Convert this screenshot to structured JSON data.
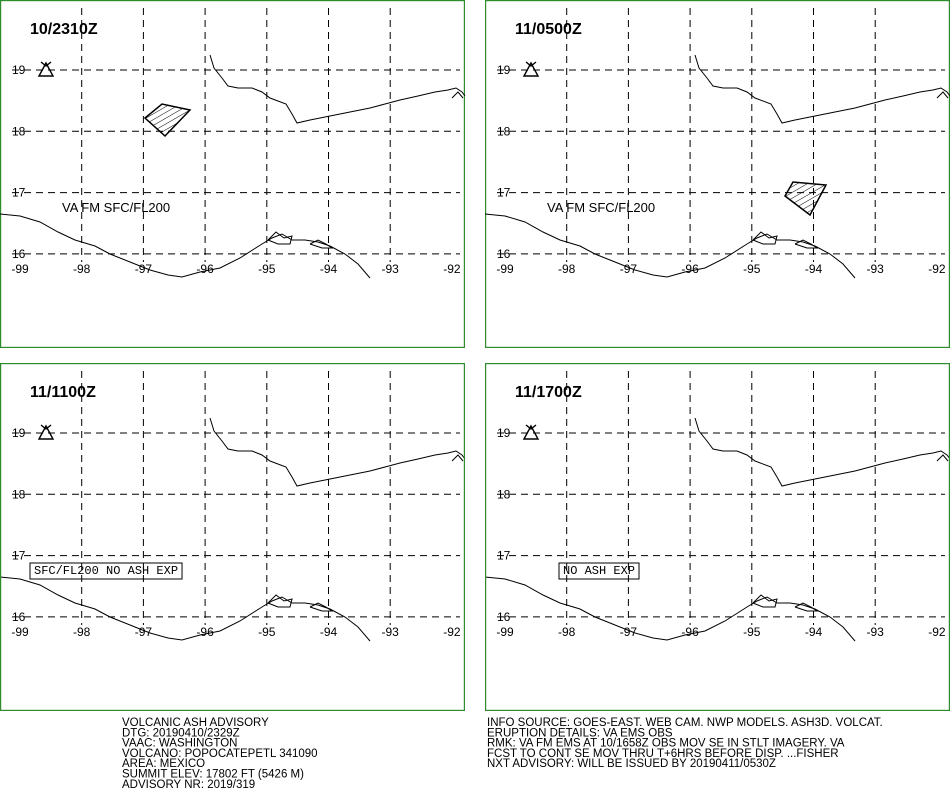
{
  "panels": [
    {
      "time": "10/2310Z",
      "label": "VA FM SFC/FL200",
      "label_boxed": false
    },
    {
      "time": "11/0500Z",
      "label": "VA FM SFC/FL200",
      "label_boxed": false
    },
    {
      "time": "11/1100Z",
      "label": "SFC/FL200 NO ASH EXP",
      "label_boxed": true
    },
    {
      "time": "11/1700Z",
      "label": "NO ASH EXP",
      "label_boxed": true
    }
  ],
  "lat_ticks": [
    19,
    18,
    17,
    16
  ],
  "lon_ticks": [
    -99,
    -98,
    -97,
    -96,
    -95,
    -94,
    -93,
    -92
  ],
  "advisory_left": [
    "VOLCANIC ASH ADVISORY",
    "DTG: 20190410/2329Z",
    "VAAC: WASHINGTON",
    "VOLCANO: POPOCATEPETL 341090",
    "AREA: MEXICO",
    "SUMMIT ELEV: 17802 FT (5426 M)",
    "ADVISORY NR: 2019/319"
  ],
  "advisory_right": [
    "INFO SOURCE: GOES-EAST. WEB CAM. NWP MODELS. ASH3D. VOLCAT.",
    "ERUPTION DETAILS: VA EMS OBS",
    "RMK: VA FM EMS AT 10/1658Z OBS MOV SE IN STLT IMAGERY. VA",
    "FCST TO CONT SE MOV THRU T+6HRS BEFORE DISP. ...FISHER",
    "NXT ADVISORY: WILL BE ISSUED BY 20190411/0530Z"
  ]
}
